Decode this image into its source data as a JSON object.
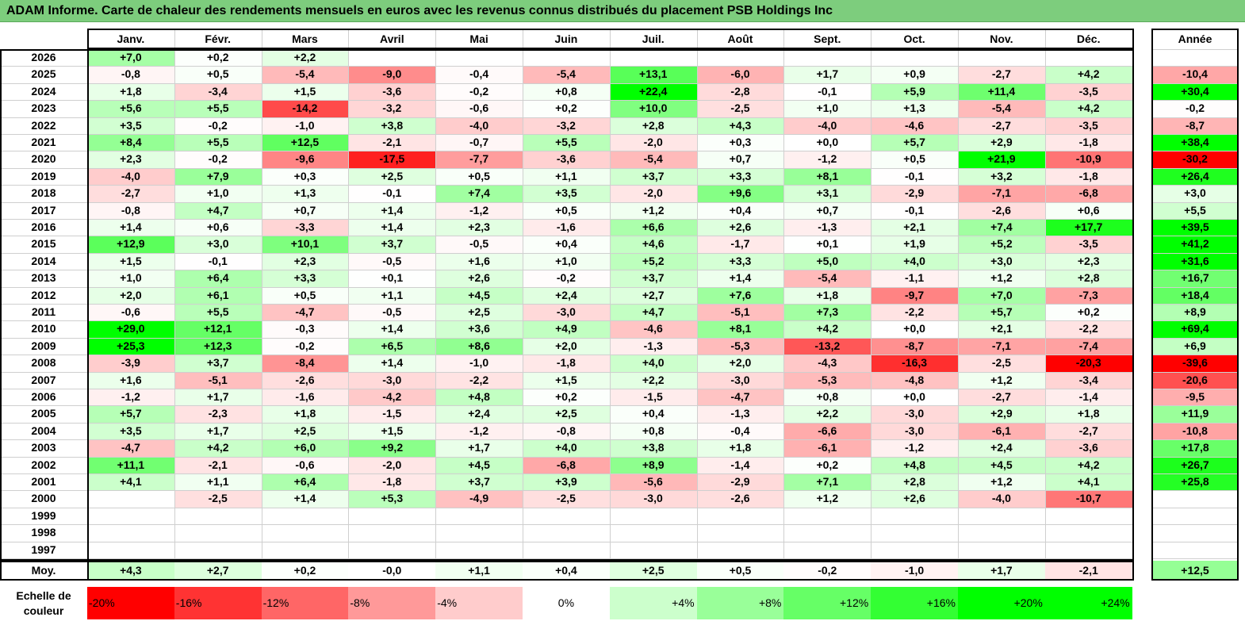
{
  "title": "ADAM Informe. Carte de chaleur des rendements mensuels en euros avec les revenus connus distribués du placement PSB Holdings Inc",
  "months": [
    "Janv.",
    "Févr.",
    "Mars",
    "Avril",
    "Mai",
    "Juin",
    "Juil.",
    "Août",
    "Sept.",
    "Oct.",
    "Nov.",
    "Déc."
  ],
  "annual_header": "Année",
  "avg_label": "Moy.",
  "scale_label": "Echelle de couleur",
  "chart_data": {
    "type": "heatmap",
    "title": "ADAM Informe. Carte de chaleur des rendements mensuels en euros avec les revenus connus distribués du placement PSB Holdings Inc",
    "x_categories": [
      "Janv.",
      "Févr.",
      "Mars",
      "Avril",
      "Mai",
      "Juin",
      "Juil.",
      "Août",
      "Sept.",
      "Oct.",
      "Nov.",
      "Déc.",
      "Année"
    ],
    "rows": [
      {
        "year": "2026",
        "values": [
          "+7,0",
          "+0,2",
          "+2,2",
          "",
          "",
          "",
          "",
          "",
          "",
          "",
          "",
          "",
          ""
        ]
      },
      {
        "year": "2025",
        "values": [
          "-0,8",
          "+0,5",
          "-5,4",
          "-9,0",
          "-0,4",
          "-5,4",
          "+13,1",
          "-6,0",
          "+1,7",
          "+0,9",
          "-2,7",
          "+4,2",
          "-10,4"
        ]
      },
      {
        "year": "2024",
        "values": [
          "+1,8",
          "-3,4",
          "+1,5",
          "-3,6",
          "-0,2",
          "+0,8",
          "+22,4",
          "-2,8",
          "-0,1",
          "+5,9",
          "+11,4",
          "-3,5",
          "+30,4"
        ]
      },
      {
        "year": "2023",
        "values": [
          "+5,6",
          "+5,5",
          "-14,2",
          "-3,2",
          "-0,6",
          "+0,2",
          "+10,0",
          "-2,5",
          "+1,0",
          "+1,3",
          "-5,4",
          "+4,2",
          "-0,2"
        ]
      },
      {
        "year": "2022",
        "values": [
          "+3,5",
          "-0,2",
          "-1,0",
          "+3,8",
          "-4,0",
          "-3,2",
          "+2,8",
          "+4,3",
          "-4,0",
          "-4,6",
          "-2,7",
          "-3,5",
          "-8,7"
        ]
      },
      {
        "year": "2021",
        "values": [
          "+8,4",
          "+5,5",
          "+12,5",
          "-2,1",
          "-0,7",
          "+5,5",
          "-2,0",
          "+0,3",
          "+0,0",
          "+5,7",
          "+2,9",
          "-1,8",
          "+38,4"
        ]
      },
      {
        "year": "2020",
        "values": [
          "+2,3",
          "-0,2",
          "-9,6",
          "-17,5",
          "-7,7",
          "-3,6",
          "-5,4",
          "+0,7",
          "-1,2",
          "+0,5",
          "+21,9",
          "-10,9",
          "-30,2"
        ]
      },
      {
        "year": "2019",
        "values": [
          "-4,0",
          "+7,9",
          "+0,3",
          "+2,5",
          "+0,5",
          "+1,1",
          "+3,7",
          "+3,3",
          "+8,1",
          "-0,1",
          "+3,2",
          "-1,8",
          "+26,4"
        ]
      },
      {
        "year": "2018",
        "values": [
          "-2,7",
          "+1,0",
          "+1,3",
          "-0,1",
          "+7,4",
          "+3,5",
          "-2,0",
          "+9,6",
          "+3,1",
          "-2,9",
          "-7,1",
          "-6,8",
          "+3,0"
        ]
      },
      {
        "year": "2017",
        "values": [
          "-0,8",
          "+4,7",
          "+0,7",
          "+1,4",
          "-1,2",
          "+0,5",
          "+1,2",
          "+0,4",
          "+0,7",
          "-0,1",
          "-2,6",
          "+0,6",
          "+5,5"
        ]
      },
      {
        "year": "2016",
        "values": [
          "+1,4",
          "+0,6",
          "-3,3",
          "+1,4",
          "+2,3",
          "-1,6",
          "+6,6",
          "+2,6",
          "-1,3",
          "+2,1",
          "+7,4",
          "+17,7",
          "+39,5"
        ]
      },
      {
        "year": "2015",
        "values": [
          "+12,9",
          "+3,0",
          "+10,1",
          "+3,7",
          "-0,5",
          "+0,4",
          "+4,6",
          "-1,7",
          "+0,1",
          "+1,9",
          "+5,2",
          "-3,5",
          "+41,2"
        ]
      },
      {
        "year": "2014",
        "values": [
          "+1,5",
          "-0,1",
          "+2,3",
          "-0,5",
          "+1,6",
          "+1,0",
          "+5,2",
          "+3,3",
          "+5,0",
          "+4,0",
          "+3,0",
          "+2,3",
          "+31,6"
        ]
      },
      {
        "year": "2013",
        "values": [
          "+1,0",
          "+6,4",
          "+3,3",
          "+0,1",
          "+2,6",
          "-0,2",
          "+3,7",
          "+1,4",
          "-5,4",
          "-1,1",
          "+1,2",
          "+2,8",
          "+16,7"
        ]
      },
      {
        "year": "2012",
        "values": [
          "+2,0",
          "+6,1",
          "+0,5",
          "+1,1",
          "+4,5",
          "+2,4",
          "+2,7",
          "+7,6",
          "+1,8",
          "-9,7",
          "+7,0",
          "-7,3",
          "+18,4"
        ]
      },
      {
        "year": "2011",
        "values": [
          "-0,6",
          "+5,5",
          "-4,7",
          "-0,5",
          "+2,5",
          "-3,0",
          "+4,7",
          "-5,1",
          "+7,3",
          "-2,2",
          "+5,7",
          "+0,2",
          "+8,9"
        ]
      },
      {
        "year": "2010",
        "values": [
          "+29,0",
          "+12,1",
          "-0,3",
          "+1,4",
          "+3,6",
          "+4,9",
          "-4,6",
          "+8,1",
          "+4,2",
          "+0,0",
          "+2,1",
          "-2,2",
          "+69,4"
        ]
      },
      {
        "year": "2009",
        "values": [
          "+25,3",
          "+12,3",
          "-0,2",
          "+6,5",
          "+8,6",
          "+2,0",
          "-1,3",
          "-5,3",
          "-13,2",
          "-8,7",
          "-7,1",
          "-7,4",
          "+6,9"
        ]
      },
      {
        "year": "2008",
        "values": [
          "-3,9",
          "+3,7",
          "-8,4",
          "+1,4",
          "-1,0",
          "-1,8",
          "+4,0",
          "+2,0",
          "-4,3",
          "-16,3",
          "-2,5",
          "-20,3",
          "-39,6"
        ]
      },
      {
        "year": "2007",
        "values": [
          "+1,6",
          "-5,1",
          "-2,6",
          "-3,0",
          "-2,2",
          "+1,5",
          "+2,2",
          "-3,0",
          "-5,3",
          "-4,8",
          "+1,2",
          "-3,4",
          "-20,6"
        ]
      },
      {
        "year": "2006",
        "values": [
          "-1,2",
          "+1,7",
          "-1,6",
          "-4,2",
          "+4,8",
          "+0,2",
          "-1,5",
          "-4,7",
          "+0,8",
          "+0,0",
          "-2,7",
          "-1,4",
          "-9,5"
        ]
      },
      {
        "year": "2005",
        "values": [
          "+5,7",
          "-2,3",
          "+1,8",
          "-1,5",
          "+2,4",
          "+2,5",
          "+0,4",
          "-1,3",
          "+2,2",
          "-3,0",
          "+2,9",
          "+1,8",
          "+11,9"
        ]
      },
      {
        "year": "2004",
        "values": [
          "+3,5",
          "+1,7",
          "+2,5",
          "+1,5",
          "-1,2",
          "-0,8",
          "+0,8",
          "-0,4",
          "-6,6",
          "-3,0",
          "-6,1",
          "-2,7",
          "-10,8"
        ]
      },
      {
        "year": "2003",
        "values": [
          "-4,7",
          "+4,2",
          "+6,0",
          "+9,2",
          "+1,7",
          "+4,0",
          "+3,8",
          "+1,8",
          "-6,1",
          "-1,2",
          "+2,4",
          "-3,6",
          "+17,8"
        ]
      },
      {
        "year": "2002",
        "values": [
          "+11,1",
          "-2,1",
          "-0,6",
          "-2,0",
          "+4,5",
          "-6,8",
          "+8,9",
          "-1,4",
          "+0,2",
          "+4,8",
          "+4,5",
          "+4,2",
          "+26,7"
        ]
      },
      {
        "year": "2001",
        "values": [
          "+4,1",
          "+1,1",
          "+6,4",
          "-1,8",
          "+3,7",
          "+3,9",
          "-5,6",
          "-2,9",
          "+7,1",
          "+2,8",
          "+1,2",
          "+4,1",
          "+25,8"
        ]
      },
      {
        "year": "2000",
        "values": [
          "",
          "-2,5",
          "+1,4",
          "+5,3",
          "-4,9",
          "-2,5",
          "-3,0",
          "-2,6",
          "+1,2",
          "+2,6",
          "-4,0",
          "-10,7",
          ""
        ]
      },
      {
        "year": "1999",
        "values": [
          "",
          "",
          "",
          "",
          "",
          "",
          "",
          "",
          "",
          "",
          "",
          "",
          ""
        ]
      },
      {
        "year": "1998",
        "values": [
          "",
          "",
          "",
          "",
          "",
          "",
          "",
          "",
          "",
          "",
          "",
          "",
          ""
        ]
      },
      {
        "year": "1997",
        "values": [
          "",
          "",
          "",
          "",
          "",
          "",
          "",
          "",
          "",
          "",
          "",
          "",
          ""
        ]
      }
    ],
    "average": [
      "+4,3",
      "+2,7",
      "+0,2",
      "-0,0",
      "+1,1",
      "+0,4",
      "+2,5",
      "+0,5",
      "-0,2",
      "-1,0",
      "+1,7",
      "-2,1",
      "+12,5"
    ],
    "color_scale": [
      "-20%",
      "-16%",
      "-12%",
      "-8%",
      "-4%",
      "0%",
      "+4%",
      "+8%",
      "+12%",
      "+16%",
      "+20%",
      "+24%"
    ],
    "scale_colors": [
      "#ff0000",
      "#ff3333",
      "#ff6666",
      "#ff9999",
      "#ffcccc",
      "#ffffff",
      "#ccffcc",
      "#99ff99",
      "#66ff66",
      "#33ff33",
      "#00ff00",
      "#00ff00"
    ]
  }
}
